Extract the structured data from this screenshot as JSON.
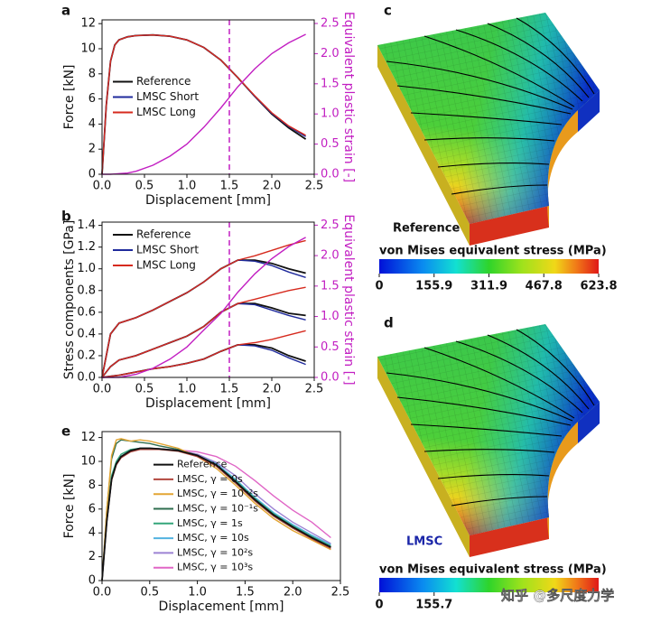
{
  "chart_data": [
    {
      "type": "line",
      "label": "a",
      "xlabel": "Displacement [mm]",
      "ylabel": "Force [kN]",
      "y2label": "Equivalent plastic strain [-]",
      "y2color": "#c21fc2",
      "x": [
        0,
        0.05,
        0.1,
        0.15,
        0.2,
        0.3,
        0.4,
        0.6,
        0.8,
        1.0,
        1.2,
        1.4,
        1.6,
        1.8,
        2.0,
        2.2,
        2.4
      ],
      "xlim": [
        0,
        2.5
      ],
      "xticks": [
        {
          "value": 0,
          "label": "0.0"
        },
        0.5,
        {
          "value": 1,
          "label": "1.0"
        },
        1.5,
        {
          "value": 2,
          "label": "2.0"
        },
        2.5
      ],
      "ylim": [
        0,
        12.3
      ],
      "yticks": [
        0,
        2,
        4,
        6,
        8,
        10,
        12
      ],
      "y2lim": [
        0,
        2.56
      ],
      "y2ticks": [
        {
          "value": 0,
          "label": "0.0"
        },
        0.5,
        {
          "value": 1,
          "label": "1.0"
        },
        1.5,
        {
          "value": 2,
          "label": "2.0"
        },
        2.5
      ],
      "vline": 1.5,
      "legend": "center left",
      "series": [
        {
          "name": "Reference",
          "color": "#111111",
          "values": [
            0,
            5.5,
            9.0,
            10.3,
            10.7,
            10.95,
            11.05,
            11.1,
            11.0,
            10.7,
            10.1,
            9.1,
            7.7,
            6.2,
            4.8,
            3.7,
            2.8
          ]
        },
        {
          "name": "LMSC Short",
          "color": "#1f2a9c",
          "values": [
            0,
            5.5,
            9.0,
            10.3,
            10.7,
            10.95,
            11.05,
            11.1,
            11.0,
            10.7,
            10.1,
            9.1,
            7.7,
            6.2,
            4.85,
            3.8,
            3.0
          ]
        },
        {
          "name": "LMSC Long",
          "color": "#d62a1e",
          "values": [
            0,
            5.5,
            9.0,
            10.3,
            10.7,
            10.95,
            11.05,
            11.1,
            11.0,
            10.7,
            10.1,
            9.1,
            7.7,
            6.25,
            4.9,
            3.85,
            3.1
          ]
        },
        {
          "color": "#c21fc2",
          "axis": "y2",
          "values": [
            0,
            0,
            0,
            0.005,
            0.01,
            0.02,
            0.05,
            0.15,
            0.3,
            0.5,
            0.78,
            1.1,
            1.45,
            1.75,
            2.0,
            2.18,
            2.32
          ]
        }
      ]
    },
    {
      "type": "line",
      "label": "b",
      "xlabel": "Displacement [mm]",
      "ylabel": "Stress components [GPa]",
      "y2label": "Equivalent plastic strain [-]",
      "y2color": "#c21fc2",
      "x": [
        0,
        0.1,
        0.2,
        0.4,
        0.6,
        0.8,
        1.0,
        1.2,
        1.4,
        1.6,
        1.8,
        2.0,
        2.2,
        2.4
      ],
      "xlim": [
        0,
        2.5
      ],
      "xticks": [
        {
          "value": 0,
          "label": "0.0"
        },
        0.5,
        {
          "value": 1,
          "label": "1.0"
        },
        1.5,
        {
          "value": 2,
          "label": "2.0"
        },
        2.5
      ],
      "ylim": [
        0,
        1.43
      ],
      "yticks": [
        {
          "value": 0,
          "label": "0.0"
        },
        0.2,
        0.4,
        0.6,
        0.8,
        {
          "value": 1,
          "label": "1.0"
        },
        1.2,
        1.4
      ],
      "y2lim": [
        0,
        2.55
      ],
      "y2ticks": [
        {
          "value": 0,
          "label": "0.0"
        },
        0.5,
        {
          "value": 1,
          "label": "1.0"
        },
        1.5,
        {
          "value": 2,
          "label": "2.0"
        },
        2.5
      ],
      "vline": 1.5,
      "legend": "upper left",
      "series": [
        {
          "name": "Reference",
          "color": "#111111",
          "values": [
            0,
            0.4,
            0.5,
            0.55,
            0.62,
            0.7,
            0.78,
            0.88,
            1.0,
            1.08,
            1.08,
            1.05,
            1.0,
            0.96
          ]
        },
        {
          "name": "LMSC Short",
          "color": "#1f2a9c",
          "values": [
            0,
            0.4,
            0.5,
            0.55,
            0.62,
            0.7,
            0.78,
            0.88,
            1.0,
            1.08,
            1.07,
            1.03,
            0.97,
            0.92
          ]
        },
        {
          "name": "LMSC Long",
          "color": "#d62a1e",
          "values": [
            0,
            0.4,
            0.5,
            0.55,
            0.62,
            0.7,
            0.78,
            0.88,
            1.0,
            1.08,
            1.12,
            1.17,
            1.22,
            1.26
          ]
        },
        {
          "name": "Reference",
          "color": "#111111",
          "values": [
            0,
            0.1,
            0.16,
            0.2,
            0.26,
            0.32,
            0.38,
            0.47,
            0.6,
            0.68,
            0.68,
            0.64,
            0.59,
            0.57
          ]
        },
        {
          "name": "LMSC Short",
          "color": "#1f2a9c",
          "values": [
            0,
            0.1,
            0.16,
            0.2,
            0.26,
            0.32,
            0.38,
            0.47,
            0.6,
            0.68,
            0.67,
            0.62,
            0.57,
            0.53
          ]
        },
        {
          "name": "LMSC Long",
          "color": "#d62a1e",
          "values": [
            0,
            0.1,
            0.16,
            0.2,
            0.26,
            0.32,
            0.38,
            0.47,
            0.6,
            0.68,
            0.72,
            0.76,
            0.8,
            0.83
          ]
        },
        {
          "name": "Reference",
          "color": "#111111",
          "values": [
            0,
            0.01,
            0.02,
            0.05,
            0.08,
            0.1,
            0.13,
            0.17,
            0.24,
            0.3,
            0.3,
            0.27,
            0.2,
            0.15
          ]
        },
        {
          "name": "LMSC Short",
          "color": "#1f2a9c",
          "values": [
            0,
            0.01,
            0.02,
            0.05,
            0.08,
            0.1,
            0.13,
            0.17,
            0.24,
            0.3,
            0.29,
            0.25,
            0.18,
            0.12
          ]
        },
        {
          "name": "LMSC Long",
          "color": "#d62a1e",
          "values": [
            0,
            0.01,
            0.02,
            0.05,
            0.08,
            0.1,
            0.13,
            0.17,
            0.24,
            0.3,
            0.32,
            0.35,
            0.39,
            0.43
          ]
        },
        {
          "color": "#c21fc2",
          "axis": "y2",
          "values": [
            0,
            0,
            0,
            0.05,
            0.15,
            0.3,
            0.5,
            0.78,
            1.05,
            1.4,
            1.7,
            1.95,
            2.15,
            2.3
          ]
        }
      ]
    },
    {
      "type": "line",
      "label": "e",
      "xlabel": "Displacement [mm]",
      "ylabel": "Force [kN]",
      "x": [
        0,
        0.05,
        0.1,
        0.15,
        0.2,
        0.3,
        0.4,
        0.5,
        0.6,
        0.8,
        1.0,
        1.2,
        1.4,
        1.6,
        1.8,
        2.0,
        2.2,
        2.4
      ],
      "xlim": [
        0,
        2.5
      ],
      "xticks": [
        {
          "value": 0,
          "label": "0.0"
        },
        0.5,
        {
          "value": 1,
          "label": "1.0"
        },
        1.5,
        {
          "value": 2,
          "label": "2.0"
        },
        2.5
      ],
      "ylim": [
        0,
        12.5
      ],
      "yticks": [
        0,
        2,
        4,
        6,
        8,
        10,
        12
      ],
      "legend": "lower center",
      "series": [
        {
          "name": "Reference",
          "color": "#111111",
          "values": [
            0,
            5,
            8.5,
            9.8,
            10.4,
            10.9,
            11.1,
            11.1,
            11.05,
            10.9,
            10.5,
            9.7,
            8.3,
            6.8,
            5.5,
            4.5,
            3.6,
            2.8
          ]
        },
        {
          "name": "LMSC, γ = 0s",
          "color": "#b2473e",
          "values": [
            0,
            5,
            8.4,
            9.7,
            10.3,
            10.8,
            11.0,
            11.0,
            11.0,
            10.85,
            10.4,
            9.6,
            8.2,
            6.7,
            5.4,
            4.4,
            3.5,
            2.7
          ]
        },
        {
          "name": "LMSC, γ = 10⁻²s",
          "color": "#e3a533",
          "values": [
            0,
            6,
            10.5,
            11.8,
            11.9,
            11.7,
            11.8,
            11.7,
            11.5,
            11.1,
            10.4,
            9.4,
            8.0,
            6.5,
            5.2,
            4.2,
            3.4,
            2.6
          ]
        },
        {
          "name": "LMSC, γ = 10⁻¹s",
          "color": "#2f6e4f",
          "values": [
            0,
            6,
            10.2,
            11.5,
            11.8,
            11.7,
            11.6,
            11.5,
            11.3,
            11.0,
            10.5,
            9.6,
            8.2,
            6.7,
            5.4,
            4.4,
            3.6,
            2.8
          ]
        },
        {
          "name": "LMSC, γ = 1s",
          "color": "#34a57a",
          "values": [
            0,
            5.2,
            8.8,
            10.0,
            10.6,
            11.0,
            11.1,
            11.1,
            11.0,
            10.9,
            10.5,
            9.7,
            8.4,
            6.9,
            5.6,
            4.6,
            3.7,
            2.9
          ]
        },
        {
          "name": "LMSC, γ = 10s",
          "color": "#52b3e0",
          "values": [
            0,
            5,
            8.5,
            9.8,
            10.4,
            10.9,
            11.1,
            11.1,
            11.05,
            10.9,
            10.5,
            9.8,
            8.5,
            7.0,
            5.7,
            4.7,
            3.8,
            3.0
          ]
        },
        {
          "name": "LMSC, γ = 10²s",
          "color": "#9c82d3",
          "values": [
            0,
            5,
            8.5,
            9.8,
            10.4,
            10.9,
            11.1,
            11.1,
            11.05,
            10.9,
            10.6,
            9.9,
            8.8,
            7.3,
            6.0,
            4.9,
            4.0,
            3.1
          ]
        },
        {
          "name": "LMSC, γ = 10³s",
          "color": "#e066c6",
          "values": [
            0,
            5,
            8.5,
            9.8,
            10.4,
            10.9,
            11.1,
            11.1,
            11.05,
            10.95,
            10.8,
            10.4,
            9.6,
            8.4,
            7.1,
            5.9,
            4.9,
            3.6
          ]
        }
      ]
    }
  ],
  "figures": [
    {
      "label": "c",
      "caption": "Reference",
      "caption_color": "#111111",
      "colorbar": {
        "title": "von Mises equivalent stress (MPa)",
        "clim": [
          0,
          623.8
        ],
        "ticks": [
          0,
          155.9,
          311.9,
          467.8,
          623.8
        ]
      }
    },
    {
      "label": "d",
      "caption": "LMSC",
      "caption_color": "#1a25a8",
      "colorbar": {
        "title": "von Mises equivalent stress (MPa)",
        "clim": [
          0,
          622.8
        ],
        "ticks": [
          0,
          155.7
        ]
      }
    }
  ],
  "watermark": "知乎 @多尺度力学"
}
